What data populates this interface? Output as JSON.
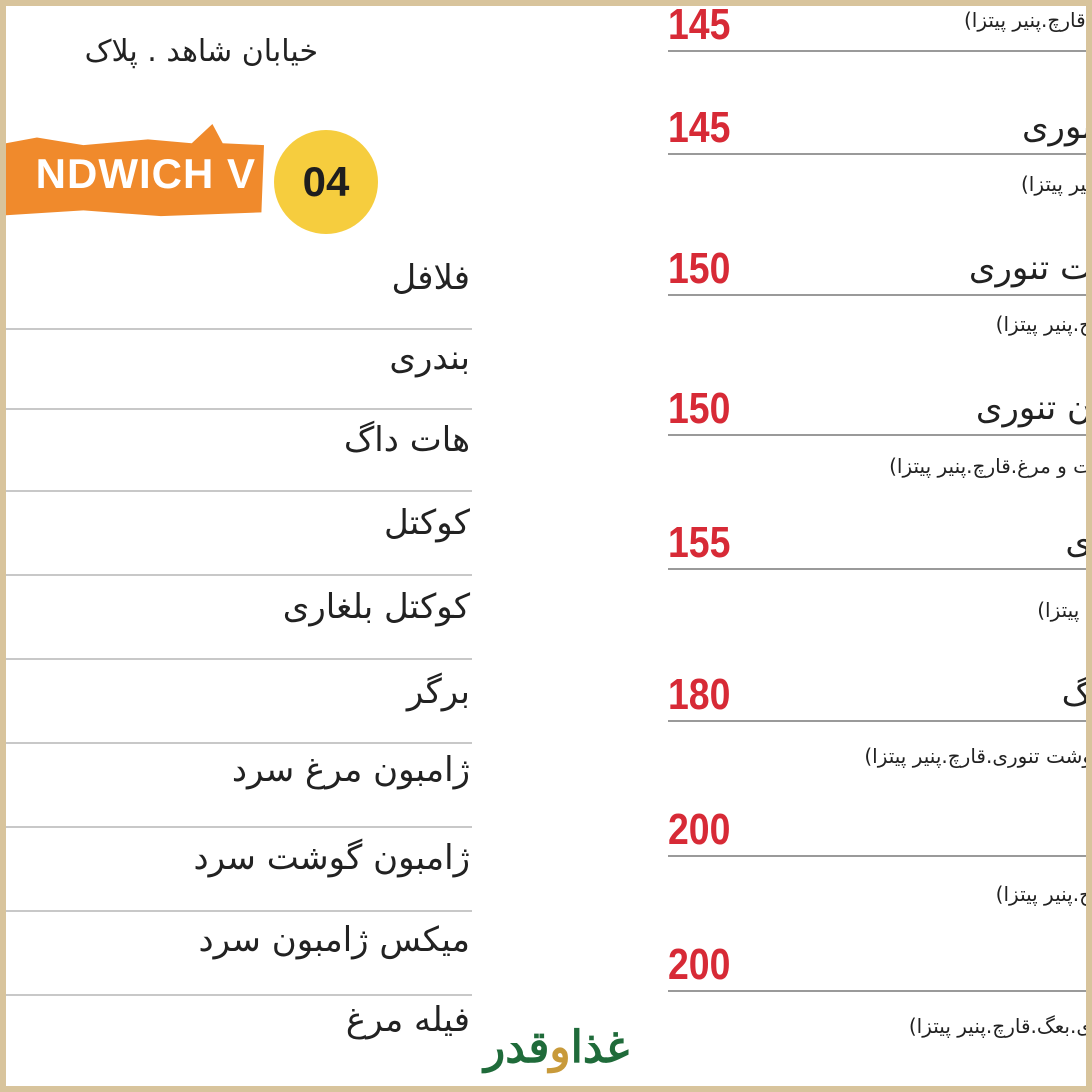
{
  "address": "خیابان شاهد . پلاک",
  "section": {
    "banner": "NDWICH V",
    "number": "04"
  },
  "left_items": [
    "فلافل",
    "بندری",
    "هات داگ",
    "کوکتل",
    "کوکتل بلغاری",
    "برگر",
    "ژامبون مرغ سرد",
    "ژامبون گوشت سرد",
    "میکس ژامبون سرد",
    "فیله مرغ"
  ],
  "right_items": [
    {
      "price": "145",
      "name": "",
      "desc": ".قارچ.پنیر پیتزا)"
    },
    {
      "price": "145",
      "name": "نوری",
      "desc": "نیر پیتزا)"
    },
    {
      "price": "150",
      "name": "ت تنوری",
      "desc": "ج.پنیر پیتزا)"
    },
    {
      "price": "150",
      "name": "ن تنوری",
      "desc": "ت و مرغ.قارچ.پنیر پیتزا)"
    },
    {
      "price": "155",
      "name": "ی",
      "desc": ". پیتزا)"
    },
    {
      "price": "180",
      "name": "گ",
      "desc": "وشت تنوری.قارچ.پنیر پیتزا)"
    },
    {
      "price": "200",
      "name": "",
      "desc": "ج.پنیر پیتزا)"
    },
    {
      "price": "200",
      "name": "",
      "desc": "ی.بعگ.قارچ.پنیر پیتزا)"
    }
  ],
  "watermark": {
    "part1": "غذا",
    "part2": "و",
    "part3": "قدر"
  },
  "colors": {
    "border": "#d8c49c",
    "price": "#d72a36",
    "banner": "#f08a2c",
    "badge": "#f6cd3e",
    "watermark": "#1f6b3a"
  }
}
